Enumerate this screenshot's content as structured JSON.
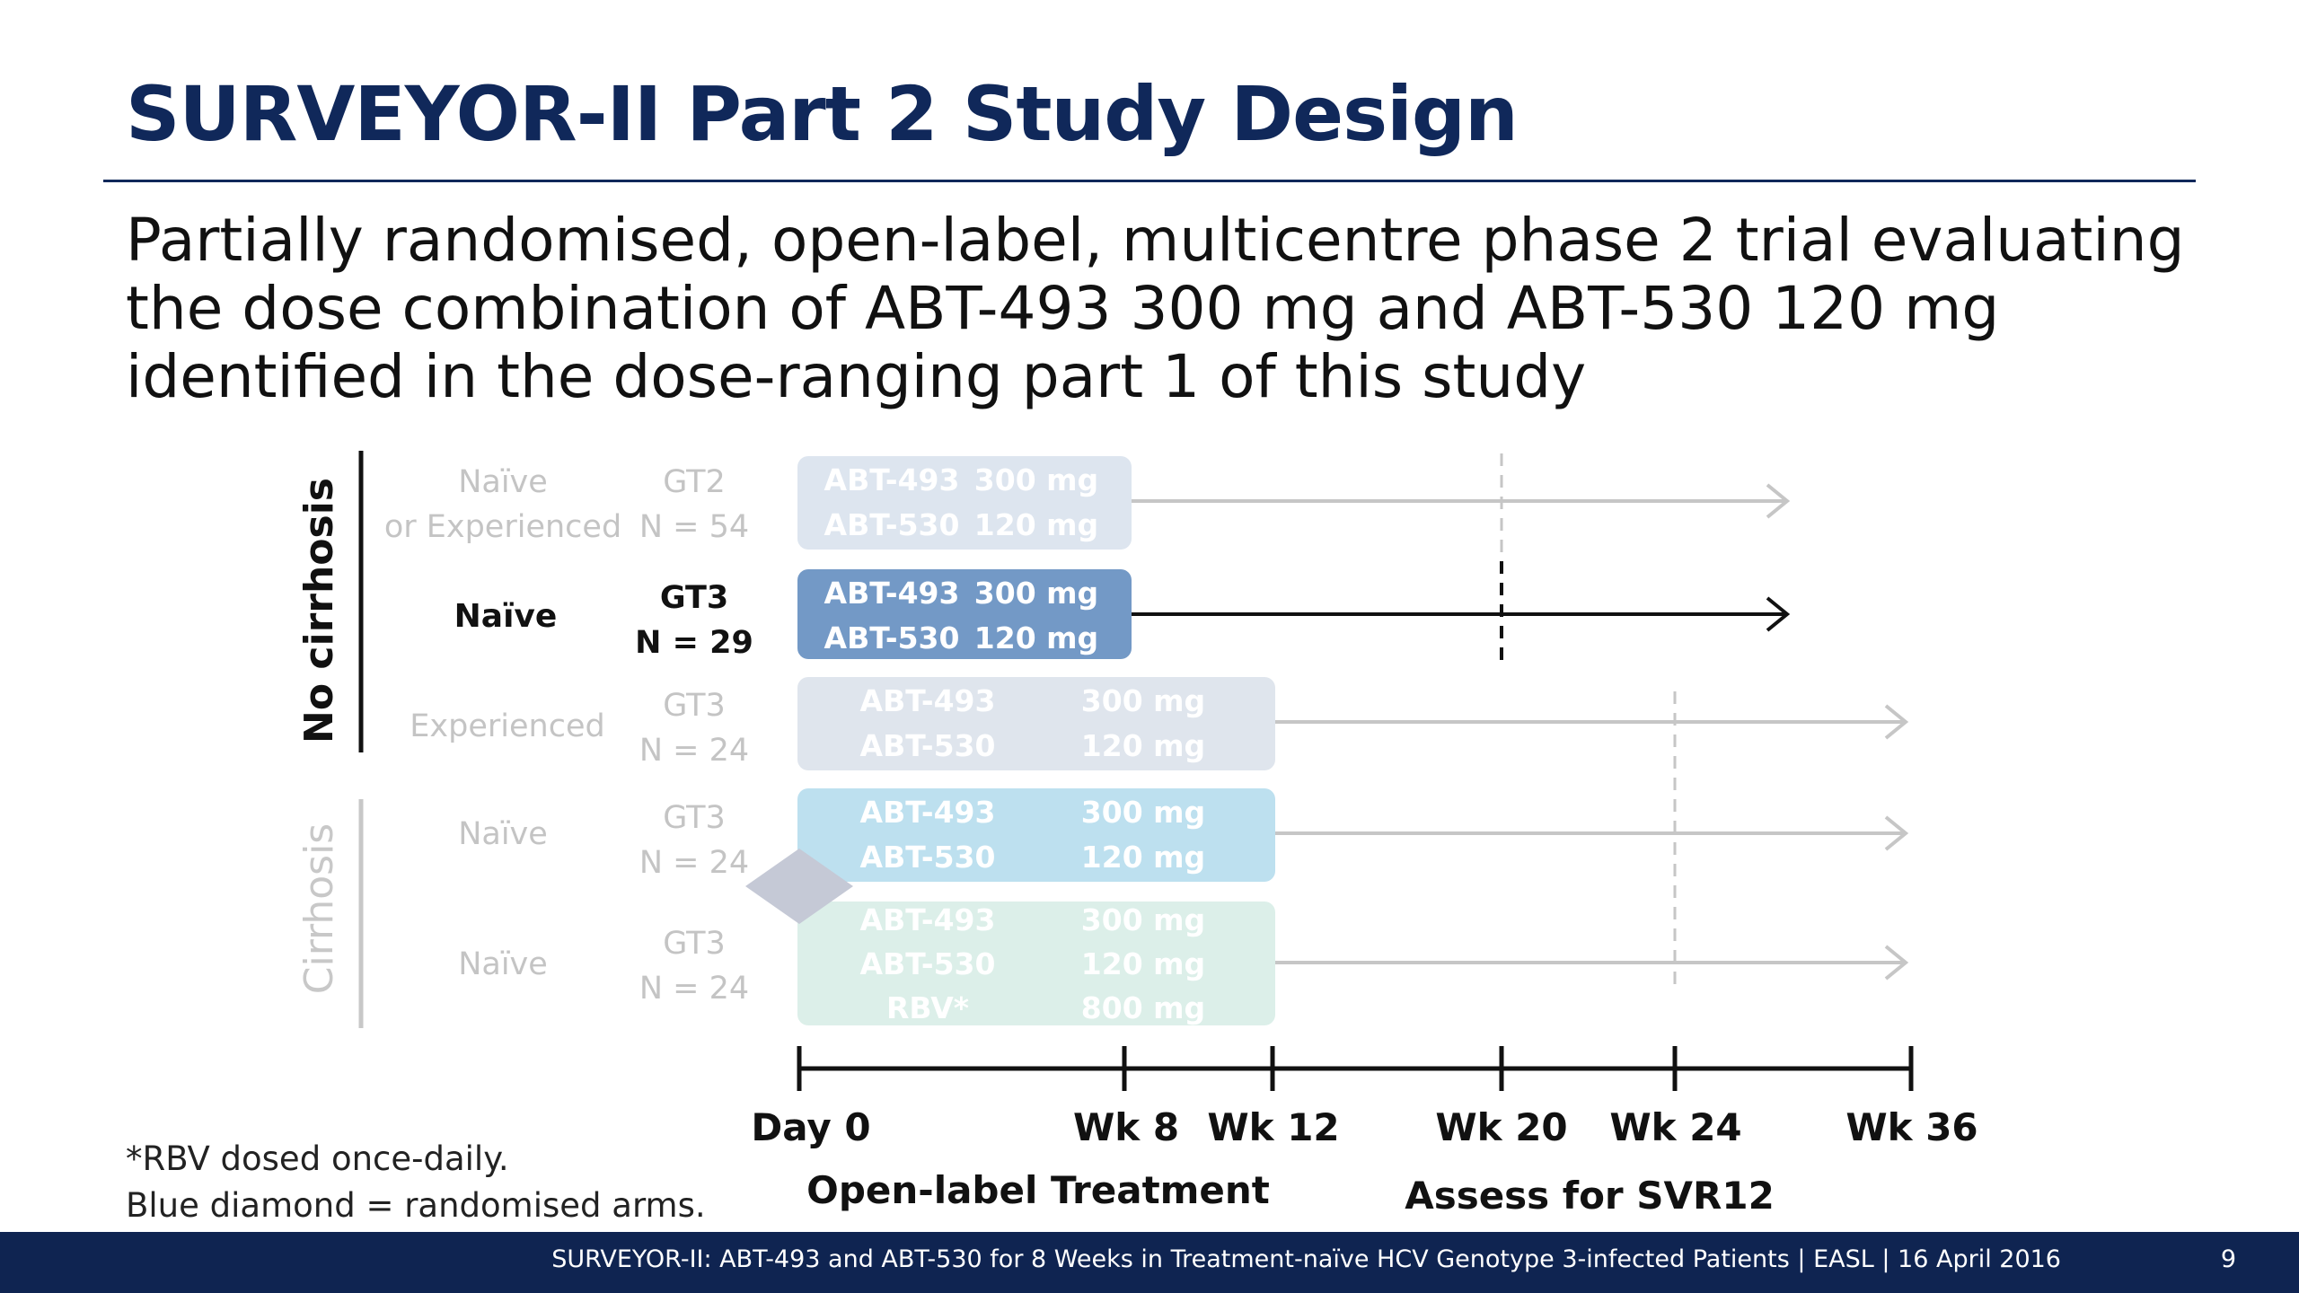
{
  "title": "SURVEYOR-II Part 2 Study Design",
  "subtitle_lines": [
    "Partially randomised, open-label, multicentre phase 2 trial evaluating",
    "the dose combination of ABT-493 300 mg and ABT-530 120 mg",
    "identified in the dose-ranging part 1 of this study"
  ],
  "groups": {
    "no_cirrhosis": "No cirrhosis",
    "cirrhosis": "Cirrhosis"
  },
  "arms": [
    {
      "population_lines": [
        "Naïve",
        "or Experienced"
      ],
      "genotype": "GT2",
      "n": "N = 54",
      "drugs": [
        [
          "ABT-493",
          "300 mg"
        ],
        [
          "ABT-530",
          "120 mg"
        ]
      ]
    },
    {
      "population_lines": [
        "Naïve"
      ],
      "genotype": "GT3",
      "n": "N = 29",
      "drugs": [
        [
          "ABT-493",
          "300 mg"
        ],
        [
          "ABT-530",
          "120 mg"
        ]
      ]
    },
    {
      "population_lines": [
        "Experienced"
      ],
      "genotype": "GT3",
      "n": "N = 24",
      "drugs": [
        [
          "ABT-493",
          "300 mg"
        ],
        [
          "ABT-530",
          "120 mg"
        ]
      ]
    },
    {
      "population_lines": [
        "Naïve"
      ],
      "genotype": "GT3",
      "n": "N = 24",
      "drugs": [
        [
          "ABT-493",
          "300 mg"
        ],
        [
          "ABT-530",
          "120 mg"
        ]
      ]
    },
    {
      "population_lines": [
        "Naïve"
      ],
      "genotype": "GT3",
      "n": "N = 24",
      "drugs": [
        [
          "ABT-493",
          "300 mg"
        ],
        [
          "ABT-530",
          "120 mg"
        ],
        [
          "RBV*",
          "800 mg"
        ]
      ]
    }
  ],
  "timeline": {
    "ticks": [
      "Day 0",
      "Wk 8",
      "Wk 12",
      "Wk 20",
      "Wk 24",
      "Wk 36"
    ],
    "treatment_label": "Open-label Treatment",
    "assess_label": "Assess for SVR12"
  },
  "footnotes": [
    "*RBV dosed once-daily.",
    "Blue diamond = randomised arms."
  ],
  "footer": {
    "text": "SURVEYOR-II: ABT-493 and ABT-530 for 8 Weeks in Treatment-naïve HCV Genotype 3-infected Patients  | EASL | 16 April 2016",
    "page": "9"
  },
  "colors": {
    "title_navy": "#10285a",
    "footer_navy": "#0f2451",
    "arm_gt2": "#dde5ef",
    "arm_gt3_naive": "#7399c6",
    "arm_gt3_experienced": "#dfe5ed",
    "arm_cirrhosis": "#bde0ef",
    "arm_cirrhosis_rbv": "#dcefe9",
    "diamond": "#c5c9d6"
  }
}
